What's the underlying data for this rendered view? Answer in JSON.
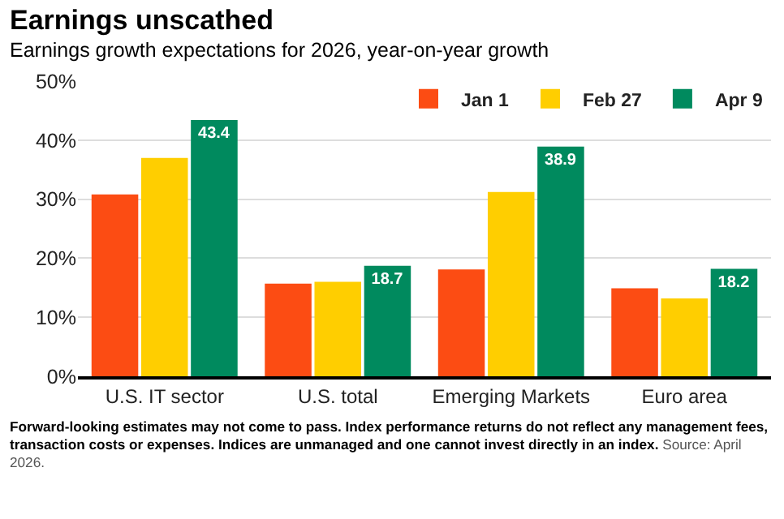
{
  "chart_data": {
    "type": "bar",
    "title": "Earnings unscathed",
    "subtitle": "Earnings growth expectations for 2026, year-on-year growth",
    "categories": [
      "U.S. IT sector",
      "U.S. total",
      "Emerging Markets",
      "Euro area"
    ],
    "series": [
      {
        "name": "Jan 1",
        "color": "#fc4c13",
        "values": [
          30.8,
          15.7,
          18.1,
          14.9
        ]
      },
      {
        "name": "Feb 27",
        "color": "#ffce00",
        "values": [
          37.0,
          16.0,
          31.2,
          13.2
        ]
      },
      {
        "name": "Apr 9",
        "color": "#008a5e",
        "values": [
          43.4,
          18.7,
          38.9,
          18.2
        ],
        "value_labels": [
          "43.4",
          "18.7",
          "38.9",
          "18.2"
        ]
      }
    ],
    "ylim": [
      0,
      50
    ],
    "yticks": [
      {
        "value": 0,
        "label": "0%"
      },
      {
        "value": 10,
        "label": "10%"
      },
      {
        "value": 20,
        "label": "20%"
      },
      {
        "value": 30,
        "label": "30%"
      },
      {
        "value": 40,
        "label": "40%"
      },
      {
        "value": 50,
        "label": "50%"
      }
    ],
    "grid": "y",
    "legend": "top right",
    "annotations": [
      "Forward-looking estimates may not come to pass. Index performance returns do not reflect any management fees, transaction costs or expenses. Indices are unmanaged and one cannot invest directly in an index.",
      "Source: April 2026."
    ]
  }
}
